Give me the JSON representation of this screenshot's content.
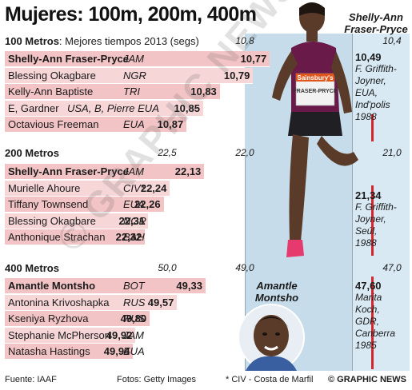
{
  "title": "Mujeres: 100m, 200m, 400m",
  "chart_data": [
    {
      "type": "bar",
      "section": "100 Metros",
      "subtitle": "Mejores tiempos 2013 (segs)",
      "axis_ticks": [
        "10,8",
        "10,4"
      ],
      "axis_range": [
        10.95,
        10.4
      ],
      "athletes": [
        {
          "name": "Shelly-Ann Fraser-Pryce",
          "country": "JAM",
          "time": "10,77",
          "value": 10.77
        },
        {
          "name": "Blessing Okagbare",
          "country": "NGR",
          "time": "10,79",
          "value": 10.79
        },
        {
          "name": "Kelly-Ann Baptiste",
          "country": "TRI",
          "time": "10,83",
          "value": 10.83
        },
        {
          "name": "E, Gardner",
          "country": "USA, B, Pierre EUA",
          "time": "10,85",
          "value": 10.85
        },
        {
          "name": "Octavious Freeman",
          "country": "EUA",
          "time": "10,87",
          "value": 10.87
        }
      ],
      "record": {
        "value": "10,49",
        "lines": [
          "F. Griffith-",
          "Joyner,",
          "EUA,",
          "Ind'polis",
          "1988"
        ]
      }
    },
    {
      "type": "bar",
      "section": "200 Metros",
      "axis_ticks": [
        "22,5",
        "22,0",
        "21,0"
      ],
      "axis_range": [
        22.4,
        21.0
      ],
      "athletes": [
        {
          "name": "Shelly-Ann Fraser-Pryce",
          "country": "JAM",
          "time": "22,13",
          "value": 22.13
        },
        {
          "name": "Murielle Ahoure",
          "country": "CIV*",
          "time": "22,24",
          "value": 22.24
        },
        {
          "name": "Tiffany Townsend",
          "country": "EUA",
          "time": "22,26",
          "value": 22.26
        },
        {
          "name": "Blessing Okagbare",
          "country": "NGR",
          "time": "22,31",
          "value": 22.31
        },
        {
          "name": "Anthonique Strachan",
          "country": "BAH",
          "time": "22,32",
          "value": 22.32
        }
      ],
      "record": {
        "value": "21,34",
        "lines": [
          "F. Griffith-",
          "Joyner,",
          "Seúl,",
          "1988"
        ]
      }
    },
    {
      "type": "bar",
      "section": "400 Metros",
      "axis_ticks": [
        "50,0",
        "49,0",
        "47,0"
      ],
      "axis_range": [
        50.05,
        47.0
      ],
      "athletes": [
        {
          "name": "Amantle Montsho",
          "country": "BOT",
          "time": "49,33",
          "value": 49.33
        },
        {
          "name": "Antonina Krivoshapka",
          "country": "RUS",
          "time": "49,57",
          "value": 49.57
        },
        {
          "name": "Kseniya Ryzhova",
          "country": "RUS",
          "time": "49,80",
          "value": 49.8
        },
        {
          "name": "Stephanie McPherson",
          "country": "JAM",
          "time": "49,92",
          "value": 49.92
        },
        {
          "name": "Natasha Hastings",
          "country": "EUA",
          "time": "49,94",
          "value": 49.94
        }
      ],
      "record": {
        "value": "47,60",
        "lines": [
          "Marita",
          "Koch,",
          "GDR,",
          "Canberra",
          "1985"
        ]
      }
    }
  ],
  "photo_labels": {
    "top": "Shelly-Ann Fraser-Pryce",
    "bottom": "Amantle Montsho",
    "bib_sponsor": "Sainsbury's",
    "bib_name": "FRASER-PRYCE"
  },
  "footer": {
    "source": "Fuente: IAAF",
    "photos": "Fotos: Getty Images",
    "note": "* CIV - Costa de Marfil",
    "credit": "© GRAPHIC NEWS"
  },
  "watermark": "© GRAPHIC NEWS",
  "colors": {
    "bar": "#f3c4c6",
    "band": "#c6dcea",
    "record_line": "#d6262d"
  }
}
